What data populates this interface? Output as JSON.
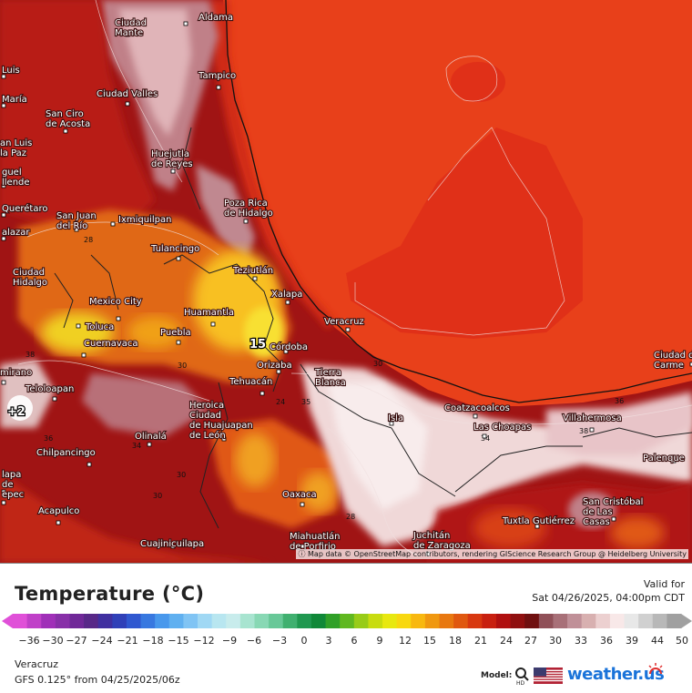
{
  "map": {
    "cities": [
      {
        "name": "Aldama"
      },
      {
        "name": "Ciudad Mante"
      },
      {
        "name": "Luis"
      },
      {
        "name": "Maria"
      },
      {
        "name": "Tampico"
      },
      {
        "name": "Ciudad Valles"
      },
      {
        "name": "San Ciro de Acosta"
      },
      {
        "name": "San Luis de la Paz"
      },
      {
        "name": "Huejutla de Reyes"
      },
      {
        "name": "Miguel Allende"
      },
      {
        "name": "Querétaro"
      },
      {
        "name": "Salazar"
      },
      {
        "name": "San Juan del Río"
      },
      {
        "name": "Ixmiquilpan"
      },
      {
        "name": "Poza Rica de Hidalgo"
      },
      {
        "name": "Tulancingo"
      },
      {
        "name": "Ciudad Hidalgo"
      },
      {
        "name": "Teziutlán"
      },
      {
        "name": "Xalapa"
      },
      {
        "name": "Mexico City"
      },
      {
        "name": "Huamantla"
      },
      {
        "name": "Toluca"
      },
      {
        "name": "Puebla"
      },
      {
        "name": "Cuernavaca"
      },
      {
        "name": "Veracruz"
      },
      {
        "name": "Córdoba"
      },
      {
        "name": "Orizaba"
      },
      {
        "name": "Tierra Blanca"
      },
      {
        "name": "Tehuacán"
      },
      {
        "name": "Teloloapan"
      },
      {
        "name": "Heroica Ciudad de Huajuapan de León"
      },
      {
        "name": "Coatzacoalcos"
      },
      {
        "name": "Las Choapas"
      },
      {
        "name": "Villahermosa"
      },
      {
        "name": "Ciudad del Carmen"
      },
      {
        "name": "Isla"
      },
      {
        "name": "Olinalá"
      },
      {
        "name": "Chilpancingo"
      },
      {
        "name": "Palenque"
      },
      {
        "name": "Tlapa de Comonfort"
      },
      {
        "name": "Oaxaca"
      },
      {
        "name": "San Cristóbal de Las Casas"
      },
      {
        "name": "Acapulco"
      },
      {
        "name": "Tuxtla Gutiérrez"
      },
      {
        "name": "Cuajinicuilapa"
      },
      {
        "name": "Miahuatlán de Porfirio Díaz"
      },
      {
        "name": "Juchitán de Zaragoza"
      },
      {
        "name": "Altamirano"
      },
      {
        "name": "Ometepec"
      }
    ],
    "point_value": "15",
    "left_value": "+2",
    "isotherm_labels": [
      "28",
      "30",
      "24",
      "35",
      "36",
      "38",
      "34",
      "30",
      "34",
      "30",
      "36",
      "38",
      "28",
      "30"
    ],
    "attribution": "Map data © OpenStreetMap contributors, rendering GIScience Research Group @ Heidelberg University"
  },
  "legend": {
    "title": "Temperature (°C)",
    "valid_label": "Valid for",
    "valid_date": "Sat 04/26/2025, 04:00pm CDT",
    "ticks": [
      "-36",
      "-30",
      "-27",
      "-24",
      "-21",
      "-18",
      "-15",
      "-12",
      "-9",
      "-6",
      "-3",
      "0",
      "3",
      "6",
      "9",
      "12",
      "15",
      "18",
      "21",
      "24",
      "27",
      "30",
      "33",
      "36",
      "39",
      "44",
      "50"
    ],
    "colors": [
      "#e050d8",
      "#c040c8",
      "#a030b8",
      "#8830a8",
      "#702898",
      "#582888",
      "#4030a0",
      "#3040b8",
      "#3058d0",
      "#3878e0",
      "#4898ec",
      "#60b0f0",
      "#80c4f4",
      "#a0d8f4",
      "#b8e6f0",
      "#c8ecec",
      "#a8e4d0",
      "#88d8b4",
      "#68c898",
      "#40b070",
      "#209850",
      "#108838",
      "#30a028",
      "#60b820",
      "#98cc18",
      "#c8dc10",
      "#e8e810",
      "#f8d810",
      "#f8b810",
      "#f09810",
      "#e87810",
      "#e05810",
      "#d83810",
      "#c82010",
      "#b01010",
      "#901010",
      "#701010",
      "#905058",
      "#a87078",
      "#c09098",
      "#d8b0b0",
      "#ecd0d0",
      "#f8e8e8",
      "#e8e8e8",
      "#d0d0d0",
      "#b8b8b8",
      "#a0a0a0"
    ]
  },
  "footer": {
    "location": "Veracruz",
    "model": "GFS 0.125° from 04/25/2025/06z",
    "model_label": "Model:",
    "brand": "weather.us"
  },
  "colors": {
    "ocean": "#e8401a",
    "hot": "#c82818",
    "warm": "#a01010",
    "mild_pink": "#c89098",
    "light_pink": "#f0d8d8",
    "yellow": "#f8d020",
    "orange": "#f08010"
  }
}
